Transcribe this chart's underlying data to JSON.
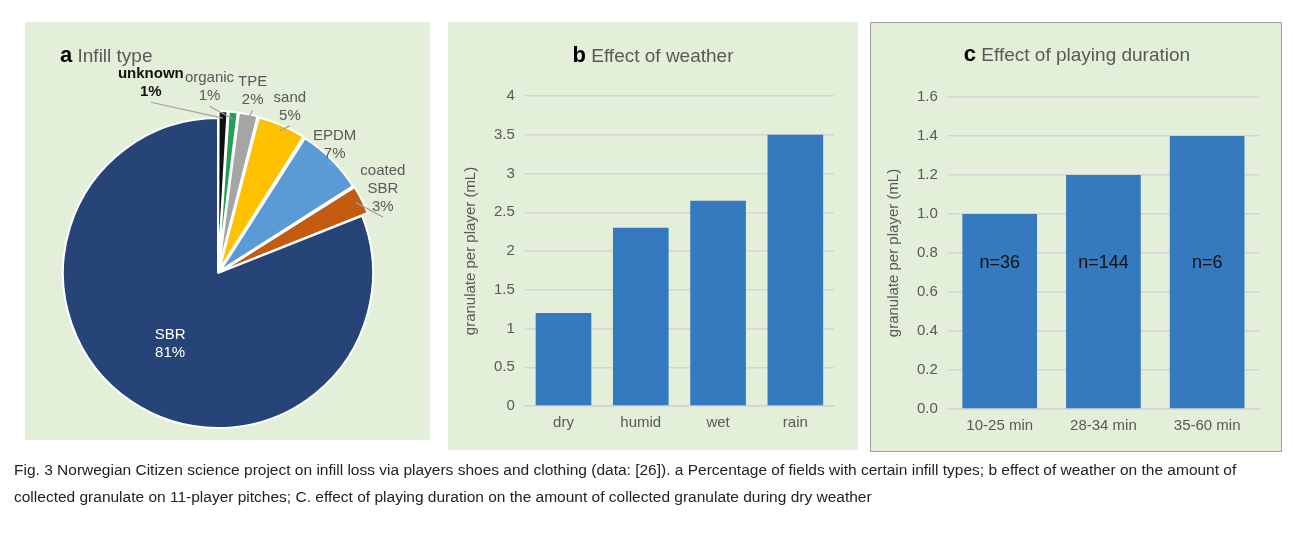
{
  "chart_data": [
    {
      "type": "pie",
      "title": "a Infill type",
      "categories": [
        "unknown",
        "organic",
        "TPE",
        "sand",
        "EPDM",
        "coated SBR",
        "SBR"
      ],
      "values": [
        1,
        1,
        2,
        5,
        7,
        3,
        81
      ],
      "colors": [
        "#111111",
        "#1fa055",
        "#a5a5a5",
        "#ffc000",
        "#5b9bd5",
        "#c55a11",
        "#264478"
      ],
      "value_labels": [
        "1%",
        "1%",
        "2%",
        "5%",
        "7%",
        "3%",
        "81%"
      ],
      "legend": false,
      "annotations": [
        "Fig. 3  Norwegian Citizen science project on infill loss via players shoes and clothing (data: [26]). a Percentage of fields with certain infill types; b effect of weather on the amount of collected granulate on 11-player pitches; C. effect of playing duration on the amount of collected granulate during dry weather"
      ]
    },
    {
      "type": "bar",
      "title": "b Effect of weather",
      "categories": [
        "dry",
        "humid",
        "wet",
        "rain"
      ],
      "values": [
        1.2,
        2.3,
        2.65,
        3.5
      ],
      "color": "#3579bf",
      "ylabel": "granulate per player (mL)",
      "ylim": [
        0,
        4
      ],
      "yticks": [
        0,
        0.5,
        1,
        1.5,
        2,
        2.5,
        3,
        3.5,
        4
      ],
      "grid": "y",
      "legend": false
    },
    {
      "type": "bar",
      "title": "c Effect of playing duration",
      "categories": [
        "10-25 min",
        "28-34 min",
        "35-60 min"
      ],
      "values": [
        1.0,
        1.2,
        1.4
      ],
      "color": "#3579bf",
      "ylabel": "granulate per player (mL)",
      "ylim": [
        0,
        1.6
      ],
      "yticks": [
        {
          "value": 0,
          "label": "0.0"
        },
        0.2,
        0.4,
        0.6,
        0.8,
        {
          "value": 1,
          "label": "1.0"
        },
        1.2,
        1.4,
        1.6
      ],
      "grid": "y",
      "legend": false,
      "annotations": [
        "n=36",
        "n=144",
        "n=6"
      ]
    }
  ]
}
